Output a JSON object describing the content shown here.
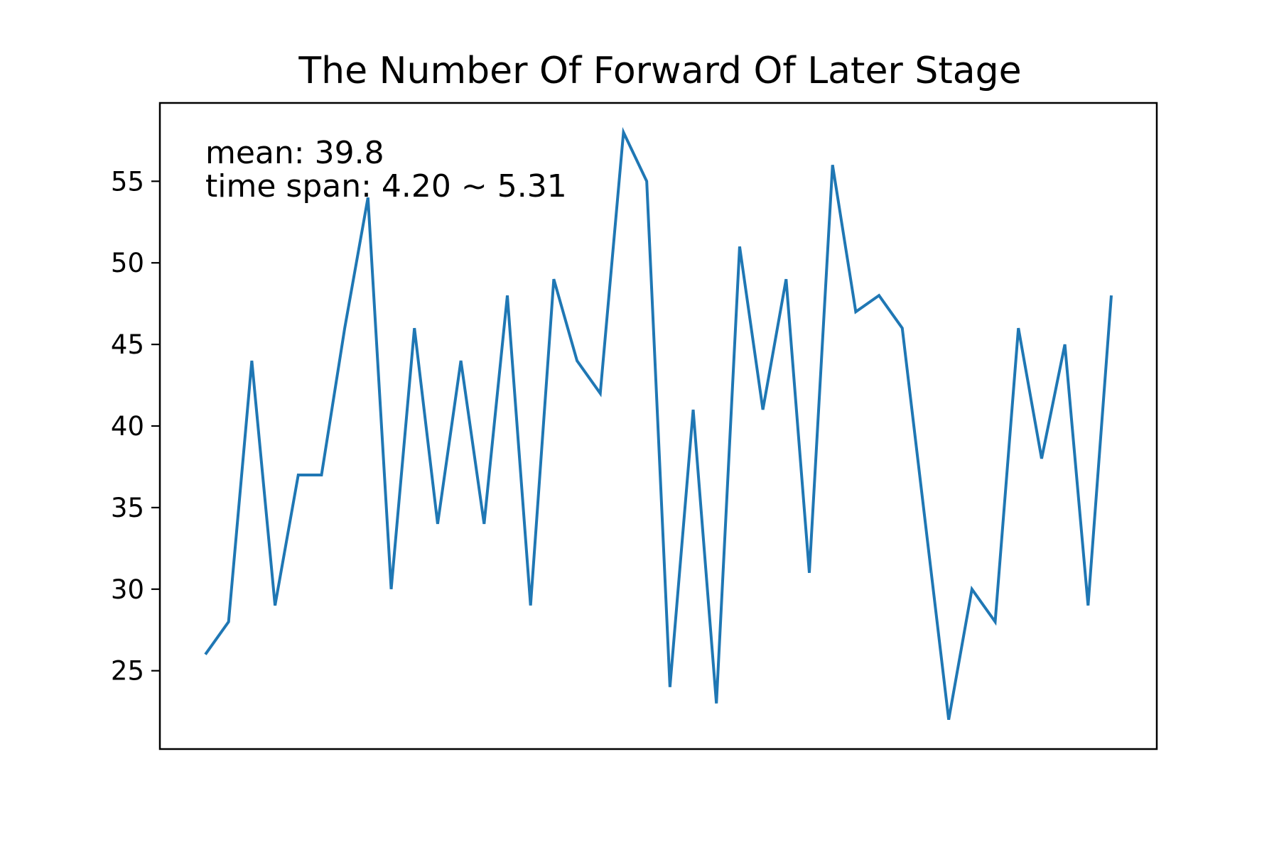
{
  "chart_data": {
    "type": "line",
    "title": "The Number Of Forward Of Later Stage",
    "xlabel": "",
    "ylabel": "",
    "x_ticks_visible": false,
    "grid": false,
    "ylim": [
      20.2,
      59.8
    ],
    "yticks": [
      25,
      30,
      35,
      40,
      45,
      50,
      55
    ],
    "line_color": "#1f77b4",
    "annotations": {
      "mean": "mean: 39.8",
      "time_span": "time span: 4.20 ~ 5.31"
    },
    "series": [
      {
        "values": [
          26,
          28,
          44,
          29,
          37,
          37,
          46,
          54,
          30,
          46,
          34,
          44,
          34,
          48,
          29,
          49,
          44,
          42,
          58,
          55,
          24,
          41,
          23,
          51,
          41,
          49,
          31,
          56,
          47,
          48,
          46,
          34,
          22,
          30,
          28,
          46,
          38,
          45,
          29,
          48
        ]
      }
    ]
  }
}
